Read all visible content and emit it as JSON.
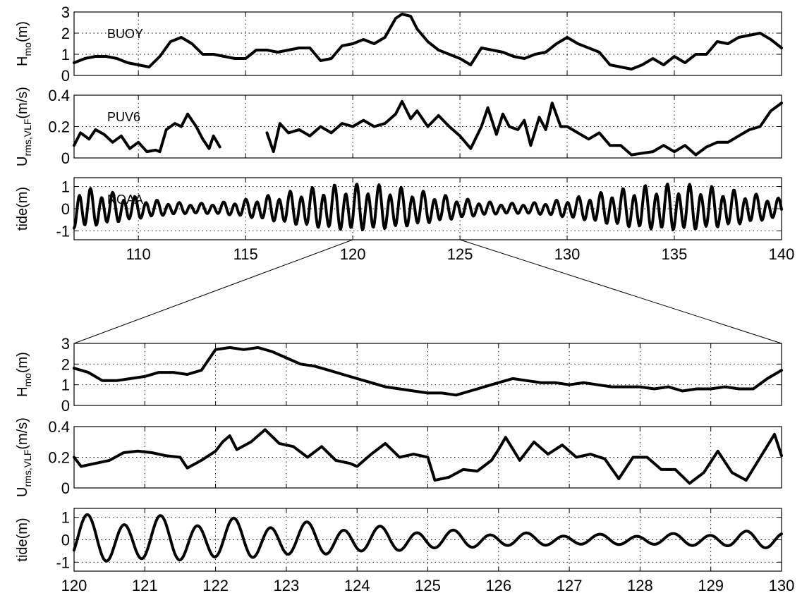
{
  "figure": {
    "background": "#ffffff",
    "line_color": "#000000"
  },
  "chart_data": [
    {
      "type": "line",
      "ylabel": "H",
      "ylabel_sub": "mo",
      "ylabel_unit": "(m)",
      "annotation": "BUOY",
      "xlim": [
        107,
        140
      ],
      "ylim": [
        0,
        3
      ],
      "xticks": [
        110,
        115,
        120,
        125,
        130,
        135,
        140
      ],
      "yticks": [
        0,
        1,
        2,
        3
      ],
      "show_xticklabels": false,
      "grid": true,
      "series": [
        {
          "x": [
            107,
            107.5,
            108,
            108.5,
            109,
            109.5,
            110,
            110.5,
            111,
            111.5,
            112,
            112.5,
            113,
            113.5,
            114,
            114.5,
            115,
            115.5,
            116,
            116.5,
            117,
            117.5,
            118,
            118.5,
            119,
            119.5,
            120,
            120.5,
            121,
            121.5,
            122,
            122.3,
            122.7,
            123,
            123.5,
            124,
            124.5,
            125,
            125.5,
            126,
            126.5,
            127,
            127.5,
            128,
            128.5,
            129,
            129.5,
            130,
            130.5,
            131,
            131.5,
            132,
            132.5,
            133,
            133.5,
            134,
            134.5,
            135,
            135.5,
            136,
            136.5,
            137,
            137.5,
            138,
            138.5,
            139,
            139.5,
            140
          ],
          "y": [
            0.6,
            0.8,
            0.9,
            0.9,
            0.8,
            0.6,
            0.5,
            0.4,
            0.9,
            1.6,
            1.8,
            1.5,
            1.0,
            1.0,
            0.9,
            0.8,
            0.8,
            1.2,
            1.2,
            1.1,
            1.2,
            1.3,
            1.3,
            0.7,
            0.8,
            1.4,
            1.5,
            1.7,
            1.5,
            1.8,
            2.7,
            2.9,
            2.8,
            2.2,
            1.6,
            1.2,
            1.0,
            0.8,
            0.5,
            1.3,
            1.2,
            1.1,
            0.9,
            0.8,
            1.0,
            1.1,
            1.5,
            1.8,
            1.5,
            1.3,
            1.1,
            0.5,
            0.4,
            0.3,
            0.5,
            0.8,
            0.5,
            0.9,
            0.6,
            1.0,
            1.0,
            1.6,
            1.5,
            1.8,
            1.9,
            2.0,
            1.7,
            1.3
          ]
        }
      ]
    },
    {
      "type": "line",
      "ylabel": "U",
      "ylabel_sub": "rms,VLF",
      "ylabel_unit": "(m/s)",
      "annotation": "PUV6",
      "xlim": [
        107,
        140
      ],
      "ylim": [
        0,
        0.4
      ],
      "xticks": [
        110,
        115,
        120,
        125,
        130,
        135,
        140
      ],
      "yticks": [
        0,
        0.2,
        0.4
      ],
      "show_xticklabels": false,
      "grid": true,
      "series": [
        {
          "x": [
            107,
            107.3,
            107.7,
            108,
            108.4,
            108.8,
            109.2,
            109.6,
            110,
            110.4,
            110.8,
            111,
            111.3,
            111.7,
            112,
            112.3,
            112.7,
            113,
            113.3,
            113.5,
            113.8
          ],
          "y": [
            0.08,
            0.16,
            0.12,
            0.18,
            0.15,
            0.1,
            0.14,
            0.06,
            0.1,
            0.04,
            0.05,
            0.04,
            0.18,
            0.22,
            0.2,
            0.28,
            0.2,
            0.12,
            0.06,
            0.14,
            0.07
          ]
        },
        {
          "x": [
            116,
            116.3,
            116.6,
            117,
            117.5,
            118,
            118.5,
            119,
            119.5,
            120,
            120.5,
            121,
            121.5,
            122,
            122.3,
            122.7,
            123,
            123.5,
            124,
            124.5,
            125,
            125.5,
            126,
            126.3,
            126.7,
            127,
            127.3,
            127.7,
            128,
            128.3,
            128.7,
            129,
            129.3,
            129.7,
            130,
            130.5,
            131,
            131.5,
            132,
            132.5,
            133,
            133.5,
            134,
            134.5,
            135,
            135.5,
            136,
            136.5,
            137,
            137.5,
            138,
            138.5,
            139,
            139.5,
            140
          ],
          "y": [
            0.16,
            0.04,
            0.22,
            0.16,
            0.18,
            0.14,
            0.2,
            0.16,
            0.22,
            0.2,
            0.24,
            0.2,
            0.22,
            0.28,
            0.36,
            0.25,
            0.3,
            0.2,
            0.27,
            0.2,
            0.14,
            0.06,
            0.2,
            0.32,
            0.15,
            0.28,
            0.2,
            0.18,
            0.24,
            0.08,
            0.26,
            0.18,
            0.35,
            0.2,
            0.2,
            0.16,
            0.12,
            0.16,
            0.08,
            0.08,
            0.02,
            0.03,
            0.04,
            0.08,
            0.04,
            0.08,
            0.02,
            0.07,
            0.1,
            0.1,
            0.14,
            0.18,
            0.2,
            0.3,
            0.35
          ]
        }
      ]
    },
    {
      "type": "line",
      "ylabel": "tide(m)",
      "ylabel_sub": "",
      "ylabel_unit": "",
      "annotation": "NOAA",
      "xlim": [
        107,
        140
      ],
      "ylim": [
        -1.4,
        1.4
      ],
      "xticks": [
        110,
        115,
        120,
        125,
        130,
        135,
        140
      ],
      "yticks": [
        -1,
        0,
        1
      ],
      "show_xticklabels": true,
      "grid": true,
      "tide": {
        "period_days": 0.5175,
        "amplitude_mean": 0.55,
        "amplitude_variation": 0.35,
        "modulation_period_days": 14.8,
        "phase_days": 120.2
      }
    },
    {
      "type": "line",
      "ylabel": "H",
      "ylabel_sub": "mo",
      "ylabel_unit": "(m)",
      "annotation": "",
      "xlim": [
        120,
        130
      ],
      "ylim": [
        0,
        3
      ],
      "xticks": [
        120,
        121,
        122,
        123,
        124,
        125,
        126,
        127,
        128,
        129,
        130
      ],
      "yticks": [
        0,
        1,
        2,
        3
      ],
      "show_xticklabels": false,
      "grid": true,
      "series": [
        {
          "x": [
            120,
            120.2,
            120.4,
            120.6,
            120.8,
            121,
            121.2,
            121.4,
            121.6,
            121.8,
            122,
            122.2,
            122.4,
            122.6,
            122.8,
            123,
            123.2,
            123.4,
            123.6,
            123.8,
            124,
            124.2,
            124.4,
            124.6,
            124.8,
            125,
            125.2,
            125.4,
            125.6,
            125.8,
            126,
            126.2,
            126.4,
            126.6,
            126.8,
            127,
            127.2,
            127.4,
            127.6,
            127.8,
            128,
            128.2,
            128.4,
            128.6,
            128.8,
            129,
            129.2,
            129.4,
            129.6,
            129.8,
            130
          ],
          "y": [
            1.8,
            1.6,
            1.2,
            1.2,
            1.3,
            1.4,
            1.6,
            1.6,
            1.5,
            1.7,
            2.7,
            2.8,
            2.7,
            2.8,
            2.6,
            2.3,
            2.0,
            1.9,
            1.7,
            1.5,
            1.3,
            1.1,
            0.9,
            0.8,
            0.7,
            0.6,
            0.6,
            0.5,
            0.7,
            0.9,
            1.1,
            1.3,
            1.2,
            1.1,
            1.1,
            1.0,
            1.1,
            1.0,
            0.9,
            0.9,
            0.9,
            0.8,
            0.9,
            0.7,
            0.8,
            0.8,
            0.9,
            0.8,
            0.8,
            1.3,
            1.7
          ]
        }
      ]
    },
    {
      "type": "line",
      "ylabel": "U",
      "ylabel_sub": "rms,VLF",
      "ylabel_unit": "(m/s)",
      "annotation": "",
      "xlim": [
        120,
        130
      ],
      "ylim": [
        0,
        0.4
      ],
      "xticks": [
        120,
        121,
        122,
        123,
        124,
        125,
        126,
        127,
        128,
        129,
        130
      ],
      "yticks": [
        0,
        0.2,
        0.4
      ],
      "show_xticklabels": false,
      "grid": true,
      "series": [
        {
          "x": [
            120,
            120.1,
            120.3,
            120.5,
            120.7,
            120.9,
            121.1,
            121.3,
            121.5,
            121.6,
            121.8,
            122,
            122.1,
            122.2,
            122.3,
            122.5,
            122.7,
            122.9,
            123.1,
            123.3,
            123.5,
            123.7,
            123.9,
            124,
            124.2,
            124.4,
            124.6,
            124.8,
            125,
            125.1,
            125.3,
            125.5,
            125.7,
            125.9,
            126,
            126.1,
            126.3,
            126.5,
            126.7,
            126.9,
            127.1,
            127.3,
            127.5,
            127.7,
            127.9,
            128.1,
            128.3,
            128.5,
            128.7,
            128.9,
            129.1,
            129.3,
            129.5,
            129.7,
            129.9,
            130
          ],
          "y": [
            0.2,
            0.14,
            0.16,
            0.18,
            0.23,
            0.24,
            0.23,
            0.21,
            0.2,
            0.13,
            0.18,
            0.24,
            0.3,
            0.34,
            0.25,
            0.3,
            0.38,
            0.29,
            0.27,
            0.2,
            0.27,
            0.18,
            0.16,
            0.14,
            0.22,
            0.29,
            0.2,
            0.22,
            0.2,
            0.05,
            0.07,
            0.12,
            0.11,
            0.18,
            0.25,
            0.33,
            0.18,
            0.3,
            0.22,
            0.28,
            0.2,
            0.22,
            0.19,
            0.06,
            0.2,
            0.2,
            0.12,
            0.12,
            0.03,
            0.1,
            0.24,
            0.1,
            0.05,
            0.2,
            0.35,
            0.21
          ]
        }
      ]
    },
    {
      "type": "line",
      "ylabel": "tide(m)",
      "ylabel_sub": "",
      "ylabel_unit": "",
      "annotation": "",
      "xlim": [
        120,
        130
      ],
      "ylim": [
        -1.4,
        1.4
      ],
      "xticks": [
        120,
        121,
        122,
        123,
        124,
        125,
        126,
        127,
        128,
        129,
        130
      ],
      "yticks": [
        -1,
        0,
        1
      ],
      "show_xticklabels": true,
      "grid": true,
      "tide": {
        "period_days": 0.5175,
        "amplitude_mean": 0.55,
        "amplitude_variation": 0.35,
        "modulation_period_days": 14.8,
        "phase_days": 120.2
      }
    }
  ],
  "zoom": {
    "source_panel": 2,
    "x_start": 120,
    "x_end": 125,
    "target_panel": 3
  }
}
